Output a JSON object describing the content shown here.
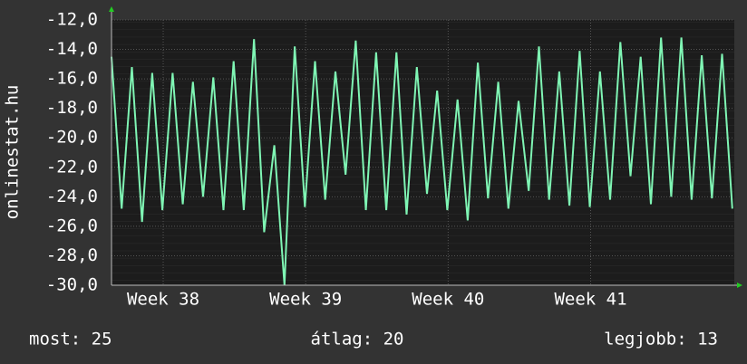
{
  "chart_data": {
    "type": "line",
    "ylabel": "onlinestat.hu",
    "x": [
      0,
      0.5,
      1,
      1.5,
      2,
      2.5,
      3,
      3.5,
      4,
      4.5,
      5,
      5.5,
      6,
      6.5,
      7,
      7.5,
      8,
      8.5,
      9,
      9.5,
      10,
      10.5,
      11,
      11.5,
      12,
      12.5,
      13,
      13.5,
      14,
      14.5,
      15,
      15.5,
      16,
      16.5,
      17,
      17.5,
      18,
      18.5,
      19,
      19.5,
      20,
      20.5,
      21,
      21.5,
      22,
      22.5,
      23,
      23.5,
      24,
      24.5,
      25,
      25.5,
      26,
      26.5,
      27,
      27.5,
      28,
      28.5,
      29,
      29.5,
      30,
      30.5
    ],
    "values": [
      -14.5,
      -24.8,
      -15.2,
      -25.7,
      -15.6,
      -24.9,
      -15.6,
      -24.5,
      -16.2,
      -24,
      -15.9,
      -24.9,
      -14.8,
      -24.9,
      -13.3,
      -26.4,
      -20.5,
      -30,
      -13.8,
      -24.7,
      -14.8,
      -24.2,
      -15.5,
      -22.5,
      -13.4,
      -24.9,
      -14.2,
      -24.9,
      -14.2,
      -25.2,
      -15.2,
      -23.8,
      -16.8,
      -24.9,
      -17.4,
      -25.6,
      -14.9,
      -24.1,
      -16.2,
      -24.8,
      -17.5,
      -23.6,
      -13.8,
      -24.2,
      -15.5,
      -24.6,
      -14.1,
      -24.7,
      -15.5,
      -24.2,
      -13.5,
      -22.6,
      -14.5,
      -24.5,
      -13.2,
      -24,
      -13.2,
      -24.2,
      -14.4,
      -24.1,
      -14.3,
      -24.8
    ],
    "color": "#7ff5b4",
    "xlim": [
      0,
      30.6
    ],
    "xticks": [
      {
        "value": 2.54,
        "label": "Week 38"
      },
      {
        "value": 9.54,
        "label": "Week 39"
      },
      {
        "value": 16.54,
        "label": "Week 40"
      },
      {
        "value": 23.54,
        "label": "Week 41"
      }
    ],
    "ylim": [
      -30,
      -12
    ],
    "yticks": [
      {
        "value": -30,
        "label": "-30,0"
      },
      {
        "value": -28,
        "label": "-28,0"
      },
      {
        "value": -26,
        "label": "-26,0"
      },
      {
        "value": -24,
        "label": "-24,0"
      },
      {
        "value": -22,
        "label": "-22,0"
      },
      {
        "value": -20,
        "label": "-20,0"
      },
      {
        "value": -18,
        "label": "-18,0"
      },
      {
        "value": -16,
        "label": "-16,0"
      },
      {
        "value": -14,
        "label": "-14,0"
      },
      {
        "value": -12,
        "label": "-12,0"
      }
    ],
    "grid": true,
    "footer": [
      "most: 25",
      "átlag: 20",
      "legjobb: 13"
    ]
  }
}
